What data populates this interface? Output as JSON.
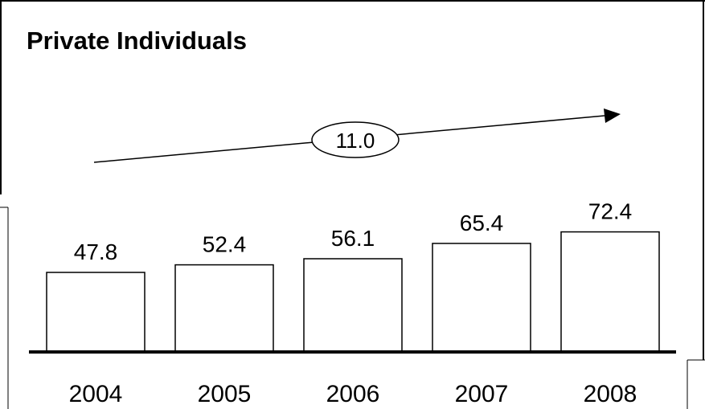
{
  "chart_data": {
    "type": "bar",
    "title": "Private Individuals",
    "categories": [
      "2004",
      "2005",
      "2006",
      "2007",
      "2008"
    ],
    "values": [
      47.8,
      52.4,
      56.1,
      65.4,
      72.4
    ],
    "data_labels": [
      "47.8",
      "52.4",
      "56.1",
      "65.4",
      "72.4"
    ],
    "growth_annotation": "11.0",
    "xlabel": "",
    "ylabel": "",
    "ylim": [
      0,
      80
    ],
    "grid": false,
    "legend": "none",
    "colors": {
      "bar_fill": "#ffffff",
      "bar_stroke": "#000000",
      "axis": "#000000"
    }
  }
}
